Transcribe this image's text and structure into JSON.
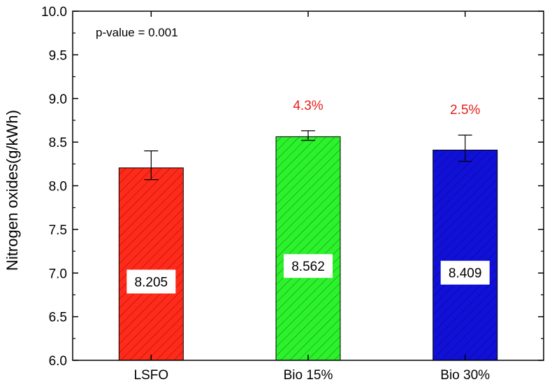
{
  "chart_data": {
    "type": "bar",
    "title": "",
    "xlabel": "",
    "ylabel": "Nitrogen oxides(g/kWh)",
    "ylim": [
      6.0,
      10.0
    ],
    "yticks": [
      "6.0",
      "6.5",
      "7.0",
      "7.5",
      "8.0",
      "8.5",
      "9.0",
      "9.5",
      "10.0"
    ],
    "grid": false,
    "categories": [
      "LSFO",
      "Bio 15%",
      "Bio 30%"
    ],
    "values": [
      8.205,
      8.562,
      8.409
    ],
    "error_low": [
      8.07,
      8.52,
      8.28
    ],
    "error_high": [
      8.4,
      8.63,
      8.58
    ],
    "value_labels": [
      "8.205",
      "8.562",
      "8.409"
    ],
    "bar_colors": [
      "#ff2a1a",
      "#2cf22c",
      "#1010d8"
    ],
    "bar_pattern": "diagonal-hatch",
    "change_labels": [
      "",
      "4.3%",
      "2.5%"
    ],
    "change_label_color": "#e8201c",
    "annotation": "p-value = 0.001"
  }
}
